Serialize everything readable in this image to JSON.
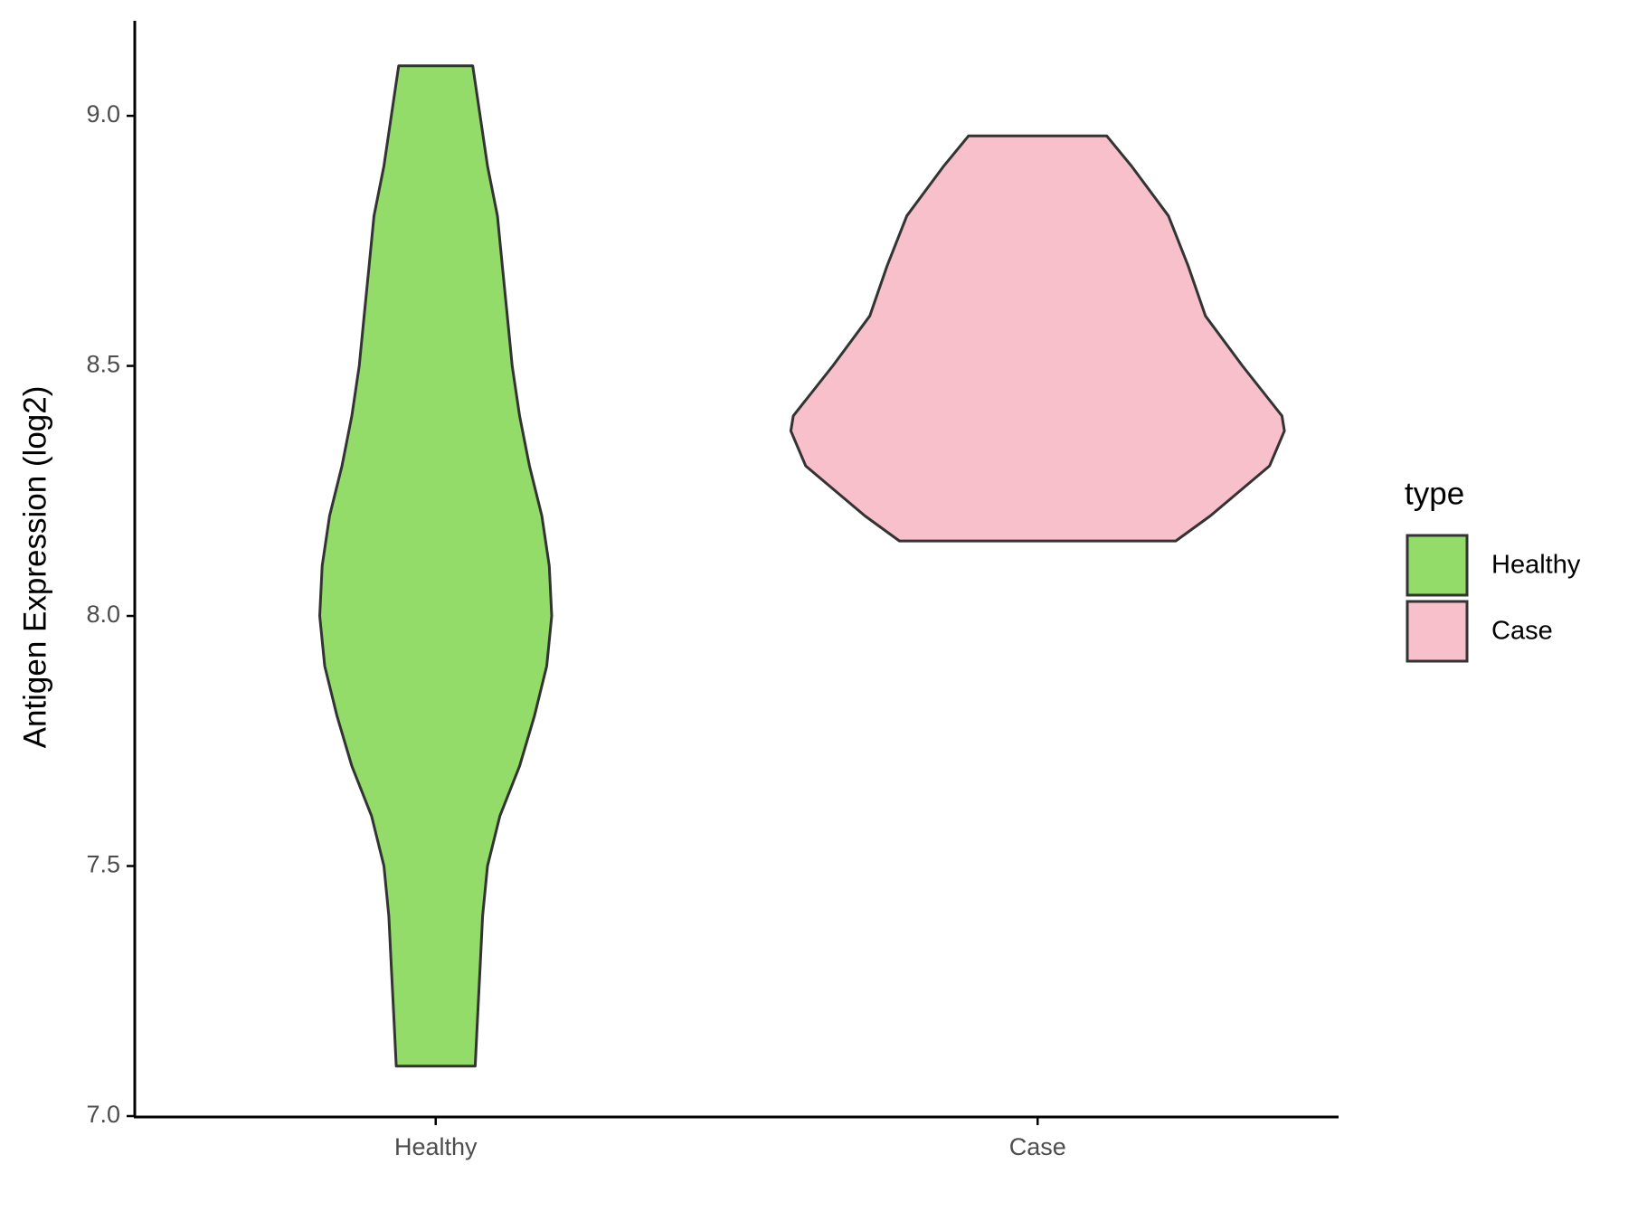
{
  "chart_data": {
    "type": "violin",
    "y_label": "Antigen Expression (log2)",
    "categories": [
      "Healthy",
      "Case"
    ],
    "legend_title": "type",
    "legend_position": "right",
    "series": [
      {
        "name": "Healthy",
        "color": "#93dc6a",
        "y": [
          7.1,
          7.2,
          7.3,
          7.4,
          7.5,
          7.6,
          7.7,
          7.8,
          7.9,
          8.0,
          8.1,
          8.2,
          8.3,
          8.4,
          8.5,
          8.6,
          8.7,
          8.8,
          8.9,
          9.1
        ],
        "widths": [
          0.16,
          0.17,
          0.18,
          0.19,
          0.21,
          0.26,
          0.34,
          0.4,
          0.45,
          0.47,
          0.46,
          0.43,
          0.38,
          0.34,
          0.31,
          0.29,
          0.27,
          0.25,
          0.21,
          0.15
        ]
      },
      {
        "name": "Case",
        "color": "#f7c0cb",
        "y": [
          8.15,
          8.2,
          8.3,
          8.37,
          8.4,
          8.5,
          8.6,
          8.7,
          8.8,
          8.9,
          8.96
        ],
        "widths": [
          0.56,
          0.7,
          0.94,
          1.0,
          0.99,
          0.83,
          0.68,
          0.61,
          0.53,
          0.38,
          0.28
        ]
      }
    ],
    "ylim": [
      7.0,
      9.19
    ],
    "yticks": [
      {
        "value": 7,
        "label": "7.0"
      },
      7.5,
      {
        "value": 8,
        "label": "8.0"
      },
      8.5,
      {
        "value": 9,
        "label": "9.0"
      }
    ]
  }
}
